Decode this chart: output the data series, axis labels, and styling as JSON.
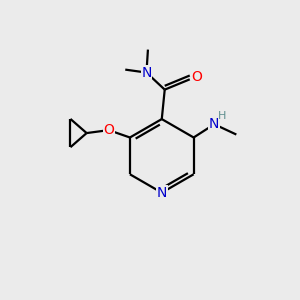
{
  "background_color": "#ebebeb",
  "atom_colors": {
    "C": "#000000",
    "N": "#0000cc",
    "O": "#ff0000",
    "H": "#5f8f8f"
  },
  "figsize": [
    3.0,
    3.0
  ],
  "dpi": 100,
  "bond_lw": 1.6,
  "font_size": 10
}
